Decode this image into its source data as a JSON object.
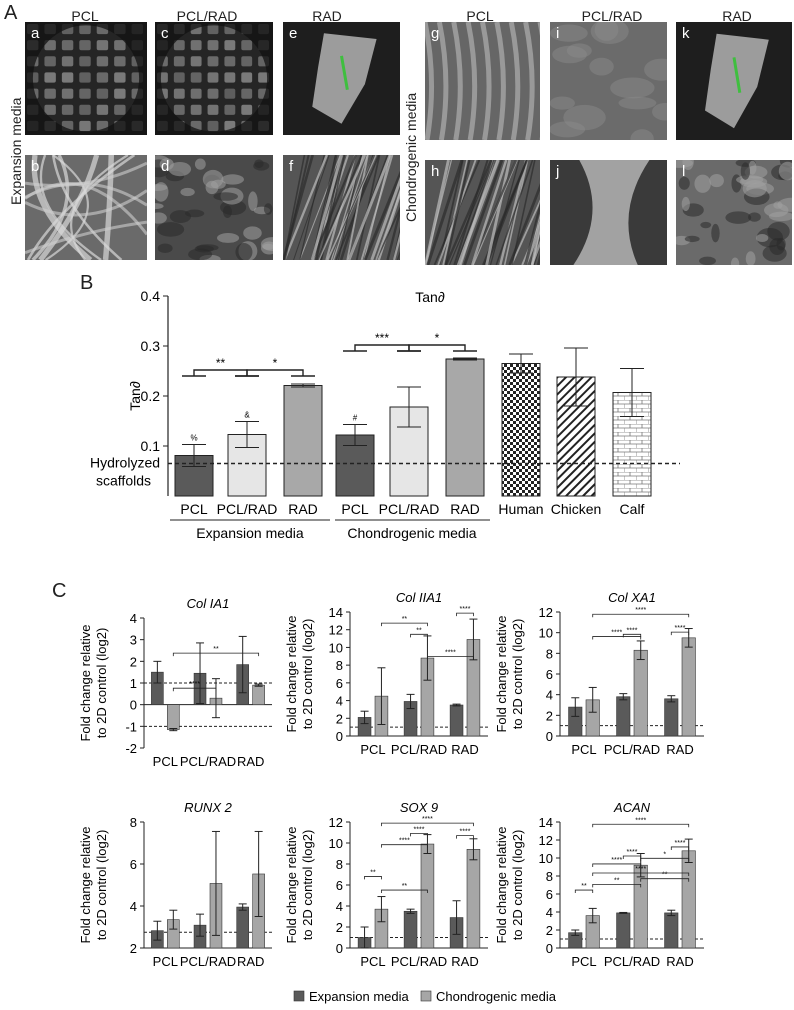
{
  "panels": {
    "A": "A",
    "B": "B",
    "C": "C"
  },
  "panelA": {
    "left_columns": [
      "PCL",
      "PCL/RAD",
      "RAD"
    ],
    "right_columns": [
      "PCL",
      "PCL/RAD",
      "RAD"
    ],
    "row_label_left": "Expansion media",
    "row_label_right": "Chondrogenic media",
    "tiles": [
      {
        "label": "a",
        "style": "grid"
      },
      {
        "label": "c",
        "style": "grid"
      },
      {
        "label": "e",
        "style": "flake"
      },
      {
        "label": "b",
        "style": "fibers"
      },
      {
        "label": "d",
        "style": "rough"
      },
      {
        "label": "f",
        "style": "fibrous"
      },
      {
        "label": "g",
        "style": "ridges"
      },
      {
        "label": "i",
        "style": "smooth"
      },
      {
        "label": "k",
        "style": "flake"
      },
      {
        "label": "h",
        "style": "fibrous"
      },
      {
        "label": "j",
        "style": "fold"
      },
      {
        "label": "l",
        "style": "lumpy"
      }
    ]
  },
  "chart_data": [
    {
      "id": "B",
      "type": "bar",
      "title": "Tan∂",
      "ylabel": "Tan∂",
      "ylim": [
        0.0,
        0.4
      ],
      "yticks": [
        "0.4",
        "0.3",
        "0.2",
        "0.1"
      ],
      "ref_line_label": "Hydrolyzed scaffolds",
      "ref_line_value": 0.065,
      "categories": [
        "PCL",
        "PCL/RAD",
        "RAD",
        "PCL",
        "PCL/RAD",
        "RAD",
        "Human",
        "Chicken",
        "Calf"
      ],
      "values": [
        0.081,
        0.123,
        0.221,
        0.122,
        0.178,
        0.274,
        0.265,
        0.238,
        0.207
      ],
      "errors": [
        0.022,
        0.026,
        0.003,
        0.021,
        0.04,
        0.002,
        0.019,
        0.058,
        0.048
      ],
      "group_labels": [
        "Expansion media",
        "Chondrogenic media"
      ],
      "marks": [
        "%",
        "&",
        "",
        "#",
        "",
        "",
        "",
        "",
        ""
      ],
      "significance": [
        "**",
        "*",
        "***",
        "*"
      ]
    },
    {
      "id": "C1",
      "type": "bar",
      "title": "Col IA1",
      "ylabel_lines": [
        "Fold change relative",
        "to 2D control (log2)"
      ],
      "ylim": [
        -2,
        4
      ],
      "yticks": [
        "4",
        "3",
        "2",
        "1",
        "0",
        "-1",
        "-2"
      ],
      "categories": [
        "PCL",
        "PCL/RAD",
        "RAD"
      ],
      "series": [
        {
          "name": "Expansion media",
          "values": [
            1.5,
            1.45,
            1.85
          ],
          "errors": [
            0.5,
            1.4,
            1.3
          ]
        },
        {
          "name": "Chondrogenic media",
          "values": [
            -1.15,
            0.3,
            0.9
          ],
          "errors": [
            0.05,
            0.9,
            0.05
          ]
        }
      ],
      "ref_lines": [
        1,
        -1
      ],
      "significance": [
        "****",
        "**"
      ]
    },
    {
      "id": "C2",
      "type": "bar",
      "title": "Col IIA1",
      "ylabel_lines": [
        "Fold change relative",
        "to 2D control (log2)"
      ],
      "ylim": [
        0,
        14
      ],
      "yticks": [
        "14",
        "12",
        "10",
        "8",
        "6",
        "4",
        "2",
        "0"
      ],
      "categories": [
        "PCL",
        "PCL/RAD",
        "RAD"
      ],
      "series": [
        {
          "name": "Expansion media",
          "values": [
            2.1,
            3.9,
            3.5
          ],
          "errors": [
            0.7,
            0.8,
            0.1
          ]
        },
        {
          "name": "Chondrogenic media",
          "values": [
            4.5,
            8.8,
            10.9
          ],
          "errors": [
            3.2,
            2.5,
            2.3
          ]
        }
      ],
      "ref_lines": [
        1
      ],
      "significance": [
        "****",
        "**",
        "**",
        "****"
      ]
    },
    {
      "id": "C3",
      "type": "bar",
      "title": "Col XA1",
      "ylabel_lines": [
        "Fold change relative",
        "to 2D control (log2)"
      ],
      "ylim": [
        0,
        12
      ],
      "yticks": [
        "12",
        "10",
        "8",
        "6",
        "4",
        "2",
        "0"
      ],
      "categories": [
        "PCL",
        "PCL/RAD",
        "RAD"
      ],
      "series": [
        {
          "name": "Expansion media",
          "values": [
            2.8,
            3.8,
            3.6
          ],
          "errors": [
            0.9,
            0.3,
            0.3
          ]
        },
        {
          "name": "Chondrogenic media",
          "values": [
            3.5,
            8.3,
            9.5
          ],
          "errors": [
            1.2,
            0.9,
            0.9
          ]
        }
      ],
      "ref_lines": [
        1
      ],
      "significance": [
        "****",
        "****",
        "****",
        "****"
      ]
    },
    {
      "id": "C4",
      "type": "bar",
      "title": "RUNX 2",
      "ylabel_lines": [
        "Fold change relative",
        "to 2D control (log2)"
      ],
      "ylim": [
        0,
        8
      ],
      "yticks": [
        "8",
        "6",
        "4",
        "2"
      ],
      "categories": [
        "PCL",
        "PCL/RAD",
        "RAD"
      ],
      "series": [
        {
          "name": "Expansion media",
          "values": [
            1.1,
            1.45,
            2.6
          ],
          "errors": [
            0.6,
            0.7,
            0.2
          ]
        },
        {
          "name": "Chondrogenic media",
          "values": [
            1.8,
            4.1,
            4.7
          ],
          "errors": [
            0.6,
            3.3,
            2.7
          ]
        }
      ],
      "ref_lines": [
        1
      ],
      "significance": []
    },
    {
      "id": "C5",
      "type": "bar",
      "title": "SOX 9",
      "ylabel_lines": [
        "Fold change relative",
        "to 2D control (log2)"
      ],
      "ylim": [
        0,
        12
      ],
      "yticks": [
        "12",
        "10",
        "8",
        "6",
        "4",
        "2",
        "0"
      ],
      "categories": [
        "PCL",
        "PCL/RAD",
        "RAD"
      ],
      "series": [
        {
          "name": "Expansion media",
          "values": [
            1.0,
            3.5,
            2.9
          ],
          "errors": [
            1.0,
            0.2,
            1.6
          ]
        },
        {
          "name": "Chondrogenic media",
          "values": [
            3.7,
            9.9,
            9.4
          ],
          "errors": [
            1.2,
            0.9,
            1.0
          ]
        }
      ],
      "ref_lines": [
        1
      ],
      "significance": [
        "**",
        "**",
        "****",
        "****",
        "****",
        "****"
      ]
    },
    {
      "id": "C6",
      "type": "bar",
      "title": "ACAN",
      "ylabel_lines": [
        "Fold change relative",
        "to 2D control (log2)"
      ],
      "ylim": [
        0,
        14
      ],
      "yticks": [
        "14",
        "12",
        "10",
        "8",
        "6",
        "4",
        "2",
        "0"
      ],
      "categories": [
        "PCL",
        "PCL/RAD",
        "RAD"
      ],
      "series": [
        {
          "name": "Expansion media",
          "values": [
            1.7,
            3.9,
            3.9
          ],
          "errors": [
            0.3,
            0.05,
            0.3
          ]
        },
        {
          "name": "Chondrogenic media",
          "values": [
            3.6,
            9.2,
            10.8
          ],
          "errors": [
            0.8,
            1.3,
            1.3
          ]
        }
      ],
      "ref_lines": [
        1
      ],
      "significance": [
        "**",
        "**",
        "****",
        "****",
        "*",
        "****",
        "****",
        "**",
        "****"
      ]
    }
  ],
  "legend": [
    {
      "label": "Expansion media",
      "color": "#5a5a5a"
    },
    {
      "label": "Chondrogenic media",
      "color": "#a6a6a6"
    }
  ],
  "colors": {
    "expansion": "#5a5a5a",
    "chondrogenic": "#a6a6a6",
    "pale": "#e6e6e6",
    "mid": "#8c8c8c",
    "light_bar": "#a8a8a8"
  }
}
